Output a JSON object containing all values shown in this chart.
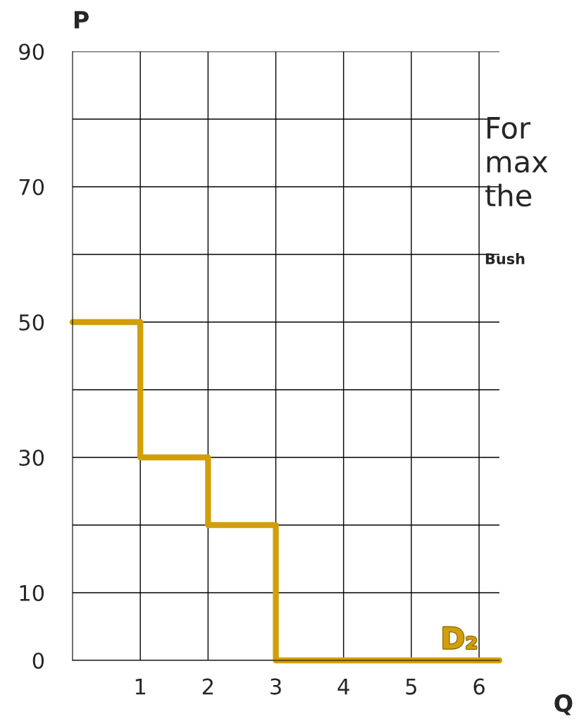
{
  "chart_data": {
    "type": "step",
    "xlabel": "Q",
    "ylabel": "P",
    "series": [
      {
        "name": "D₂",
        "color": "#d29e0a",
        "x": [
          0,
          1,
          2,
          3,
          6.3
        ],
        "values": [
          50,
          30,
          20,
          0,
          0
        ]
      }
    ],
    "xlim": [
      0,
      6.3
    ],
    "xticks": [
      1,
      2,
      3,
      4,
      5,
      6
    ],
    "ylim": [
      0,
      90
    ],
    "yticks": [
      0,
      10,
      {
        "value": 20,
        "label": null
      },
      30,
      {
        "value": 40,
        "label": null
      },
      50,
      {
        "value": 60,
        "label": null
      },
      70,
      {
        "value": 80,
        "label": null
      },
      90
    ],
    "grid": true,
    "legend": false,
    "annotations": [
      "For",
      "max",
      "the",
      "Bush"
    ]
  }
}
